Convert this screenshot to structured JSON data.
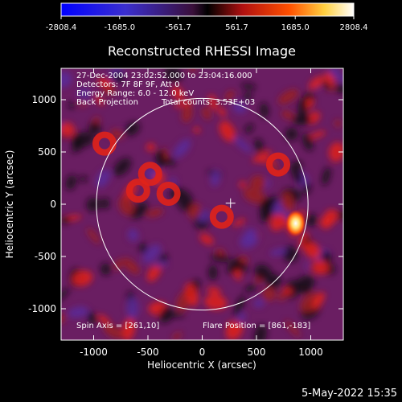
{
  "colorbar": {
    "ticks": [
      "-2808.4",
      "-1685.0",
      "-561.7",
      "561.7",
      "1685.0",
      "2808.4"
    ],
    "range": [
      -2808.4,
      2808.4
    ],
    "colormap": "blue-black-red-yellow-white"
  },
  "annotations": {
    "time_range": "27-Dec-2004 23:02:52.000 to 23:04:16.000",
    "detectors": "Detectors: 7F 8F 9F, Att 0",
    "energy_range": "Energy Range: 6.0 - 12.0 keV",
    "method": "Back Projection",
    "total_counts": "Total counts: 3.53E+03",
    "spin_axis": "Spin Axis = [261,10]",
    "flare_position": "Flare Position = [861,-183]"
  },
  "footer": {
    "date": "5-May-2022 15:35"
  },
  "colors": {
    "background": "#000000",
    "text": "#ffffff",
    "limb": "#ffffff",
    "image_base": "#6a1e62",
    "image_dark": "#1a0918",
    "image_red": "#e0221a",
    "image_hot": "#ffd060"
  },
  "chart_data": {
    "type": "heatmap",
    "title": "Reconstructed RHESSI Image",
    "xlabel": "Heliocentric X (arcsec)",
    "ylabel": "Heliocentric Y (arcsec)",
    "xlim": [
      -1300,
      1300
    ],
    "ylim": [
      -1300,
      1300
    ],
    "x_ticks": [
      "-1000",
      "-500",
      "0",
      "500",
      "1000"
    ],
    "y_ticks": [
      "-1000",
      "-500",
      "0",
      "500",
      "1000"
    ],
    "x_tick_values": [
      -1000,
      -500,
      0,
      500,
      1000
    ],
    "y_tick_values": [
      -1000,
      -500,
      0,
      500,
      1000
    ],
    "solar_limb": {
      "center": [
        0,
        0
      ],
      "radius": 975
    },
    "spin_axis_marker": [
      261,
      10
    ],
    "flare_position": [
      861,
      -183
    ],
    "bright_features": [
      {
        "x": 861,
        "y": -183,
        "intensity": 2808.4
      },
      {
        "x": -590,
        "y": 130,
        "intensity": 1300
      },
      {
        "x": -480,
        "y": 290,
        "intensity": 1200
      },
      {
        "x": -310,
        "y": 100,
        "intensity": 1200
      },
      {
        "x": 180,
        "y": -120,
        "intensity": 1000
      },
      {
        "x": 700,
        "y": 380,
        "intensity": 1000
      },
      {
        "x": -900,
        "y": 580,
        "intensity": 900
      }
    ]
  }
}
